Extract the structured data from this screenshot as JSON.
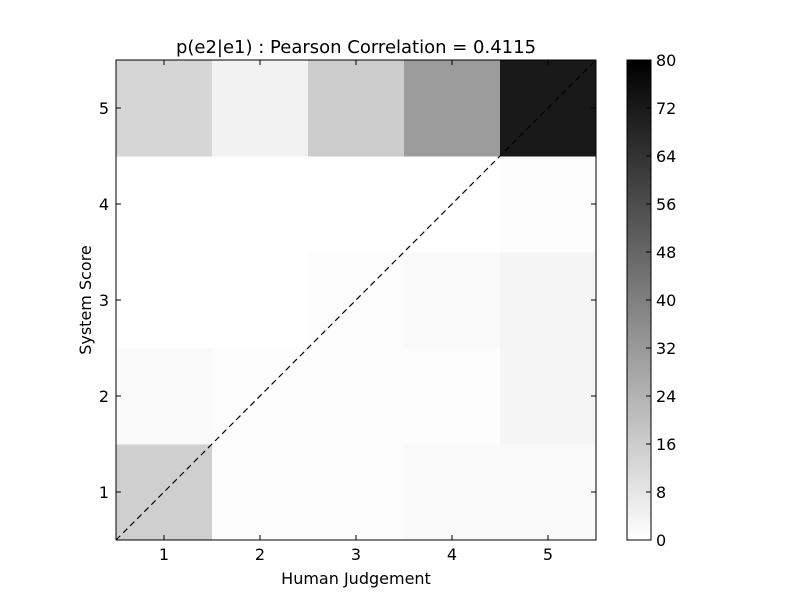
{
  "chart_data": {
    "type": "heatmap",
    "title": "p(e2|e1) : Pearson Correlation = 0.4115",
    "xlabel": "Human Judgement",
    "ylabel": "System Score",
    "x_categories": [
      "1",
      "2",
      "3",
      "4",
      "5"
    ],
    "y_categories": [
      "1",
      "2",
      "3",
      "4",
      "5"
    ],
    "values": [
      [
        15,
        1,
        1,
        2,
        2
      ],
      [
        2,
        1,
        1,
        1,
        3
      ],
      [
        0,
        0,
        1,
        2,
        3
      ],
      [
        0,
        0,
        0,
        0,
        1
      ],
      [
        13,
        4,
        16,
        31,
        72
      ]
    ],
    "colormap": "Greys",
    "vmin": 0,
    "vmax": 80,
    "colorbar_ticks": [
      "0",
      "8",
      "16",
      "24",
      "32",
      "40",
      "48",
      "56",
      "64",
      "72",
      "80"
    ],
    "diagonal_line": "dashed",
    "grid": false,
    "colors": {
      "low": "#ffffff",
      "high": "#000000"
    }
  }
}
